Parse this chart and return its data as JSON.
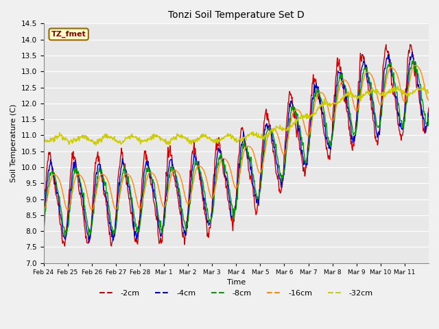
{
  "title": "Tonzi Soil Temperature Set D",
  "xlabel": "Time",
  "ylabel": "Soil Temperature (C)",
  "ylim": [
    7.0,
    14.5
  ],
  "fig_bg": "#f0f0f0",
  "ax_bg": "#e8e8e8",
  "legend_label": "TZ_fmet",
  "series": {
    "-2cm": {
      "color": "#cc0000"
    },
    "-4cm": {
      "color": "#0000cc"
    },
    "-8cm": {
      "color": "#009900"
    },
    "-16cm": {
      "color": "#ff8800"
    },
    "-32cm": {
      "color": "#cccc00"
    }
  },
  "x_tick_labels": [
    "Feb 24",
    "Feb 25",
    "Feb 26",
    "Feb 27",
    "Feb 28",
    "Mar 1",
    "Mar 2",
    "Mar 3",
    "Mar 4",
    "Mar 5",
    "Mar 6",
    "Mar 7",
    "Mar 8",
    "Mar 9",
    "Mar 10",
    "Mar 11"
  ],
  "yticks": [
    7.0,
    7.5,
    8.0,
    8.5,
    9.0,
    9.5,
    10.0,
    10.5,
    11.0,
    11.5,
    12.0,
    12.5,
    13.0,
    13.5,
    14.0,
    14.5
  ],
  "n_days": 16,
  "pts_per_day": 48
}
